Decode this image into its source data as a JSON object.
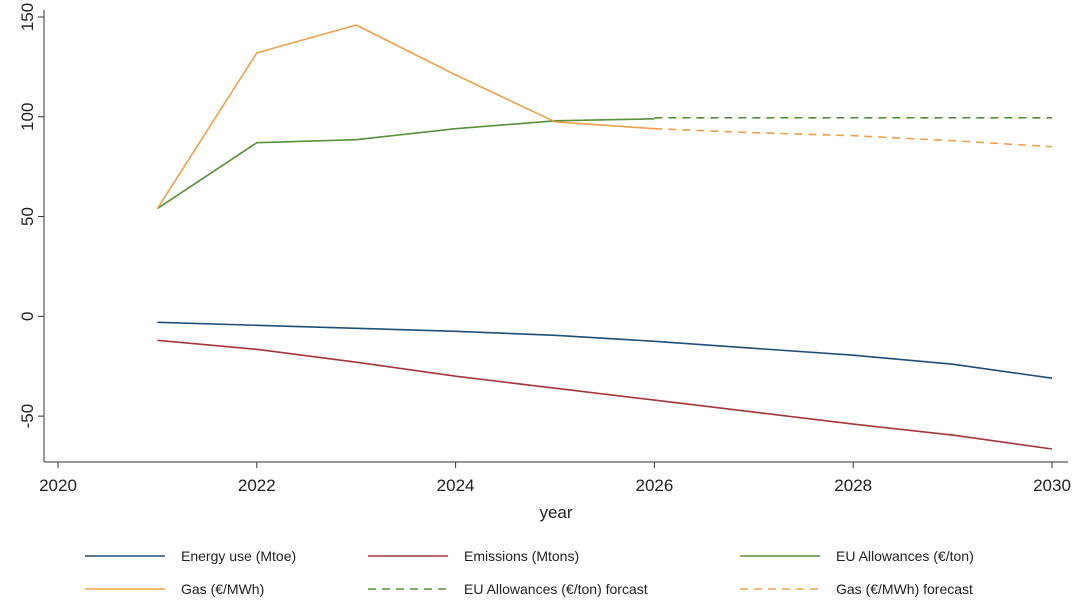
{
  "chart_data": {
    "type": "line",
    "xlabel": "year",
    "ylabel": "",
    "xlim": [
      2020,
      2030
    ],
    "ylim": [
      -75,
      155
    ],
    "x_ticks": [
      2020,
      2022,
      2024,
      2026,
      2028,
      2030
    ],
    "x_tick_labels": [
      "2020",
      "2022",
      "2024",
      "2026",
      "2028",
      "2030"
    ],
    "y_ticks": [
      -50,
      0,
      50,
      100,
      150
    ],
    "y_tick_labels": [
      "-50",
      "0",
      "50",
      "100",
      "150"
    ],
    "grid": false,
    "legend_position": "bottom",
    "series": [
      {
        "name": "Energy use (Mtoe)",
        "color": "#1f4e79",
        "dash": "solid",
        "x": [
          2021,
          2022,
          2023,
          2024,
          2025,
          2026,
          2027,
          2028,
          2029,
          2030
        ],
        "y": [
          -3,
          -4.5,
          -6,
          -7.5,
          -9.5,
          -12.5,
          -16,
          -19.5,
          -24,
          -31
        ]
      },
      {
        "name": "Emissions (Mtons)",
        "color": "#a8353a",
        "dash": "solid",
        "x": [
          2021,
          2022,
          2023,
          2024,
          2025,
          2026,
          2027,
          2028,
          2029,
          2030
        ],
        "y": [
          -12,
          -16.5,
          -23,
          -30,
          -36,
          -42,
          -48,
          -54,
          -59.5,
          -66.5
        ]
      },
      {
        "name": "EU Allowances (€/ton)",
        "color": "#5a8f3c",
        "dash": "solid",
        "x": [
          2021,
          2022,
          2023,
          2024,
          2025,
          2026
        ],
        "y": [
          54,
          87,
          88.5,
          94,
          98,
          99
        ]
      },
      {
        "name": "Gas (€/MWh)",
        "color": "#f0a04b",
        "dash": "solid",
        "x": [
          2021,
          2022,
          2023,
          2024,
          2025,
          2026
        ],
        "y": [
          54,
          132,
          146,
          121,
          97.5,
          94
        ]
      },
      {
        "name": "EU Allowances (€/ton) forcast",
        "color": "#5a8f3c",
        "dash": "dashed",
        "x": [
          2026,
          2027,
          2028,
          2029,
          2030
        ],
        "y": [
          99.5,
          99.5,
          99.5,
          99.5,
          99.5
        ]
      },
      {
        "name": "Gas (€/MWh) forecast",
        "color": "#f0a04b",
        "dash": "dashed",
        "x": [
          2026,
          2027,
          2028,
          2029,
          2030
        ],
        "y": [
          94,
          92,
          90.5,
          88,
          85
        ]
      }
    ],
    "legend": [
      "Energy use (Mtoe)",
      "Emissions (Mtons)",
      "EU Allowances (€/ton)",
      "Gas (€/MWh)",
      "EU Allowances (€/ton) forcast",
      "Gas (€/MWh) forecast"
    ]
  }
}
